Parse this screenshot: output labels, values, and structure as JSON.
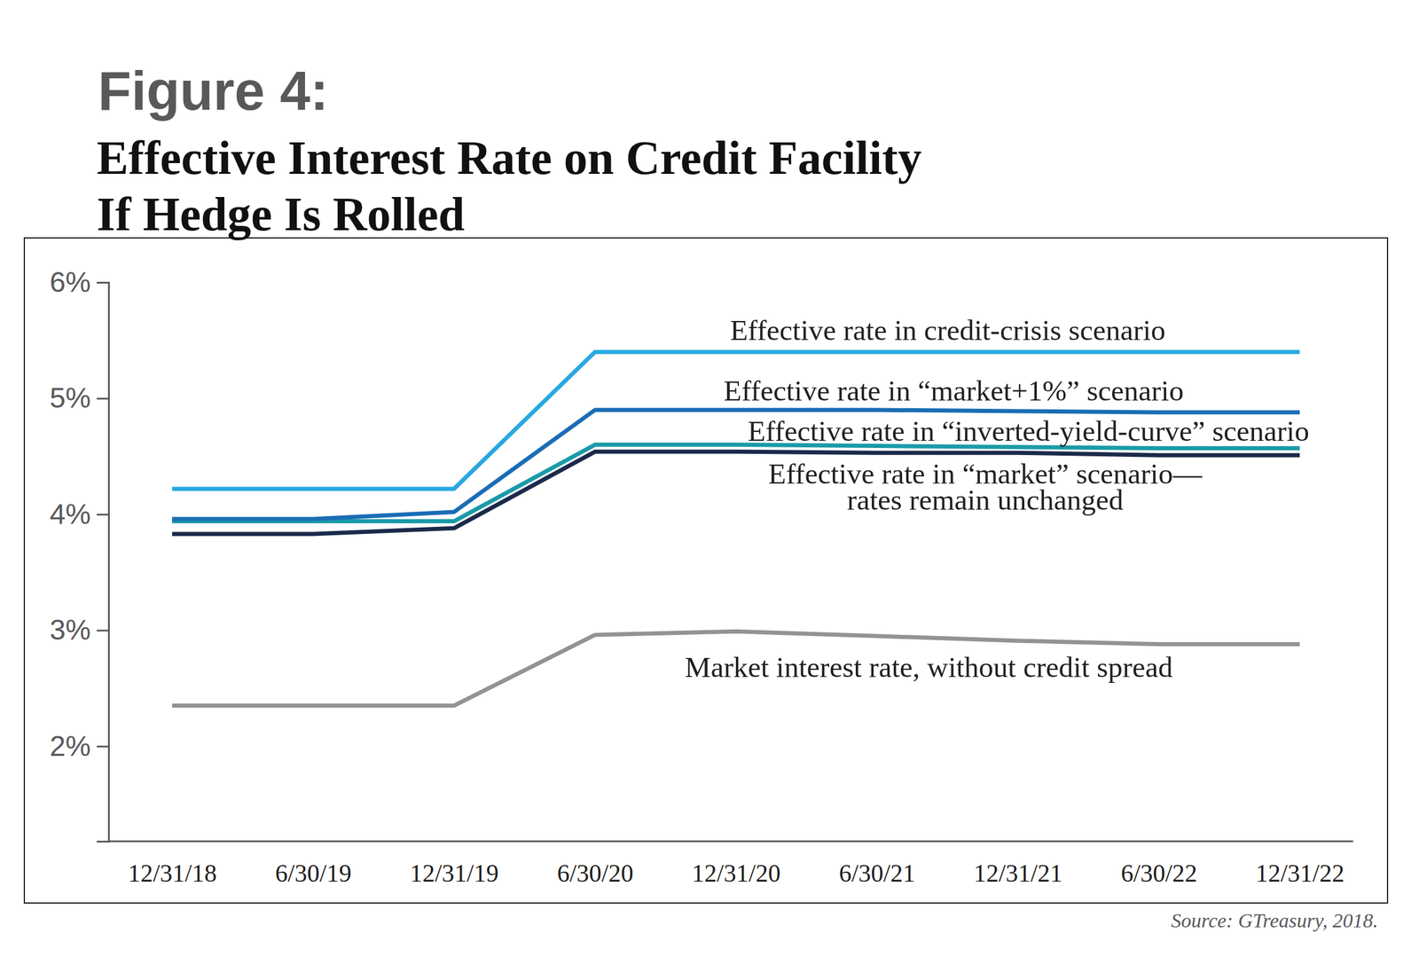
{
  "chart_data": {
    "type": "line",
    "title": "Figure 4:",
    "subtitle": "Effective Interest Rate on Credit Facility\nIf Hedge Is Rolled",
    "source": "Source: GTreasury, 2018.",
    "categories": [
      "12/31/18",
      "6/30/19",
      "12/31/19",
      "6/30/20",
      "12/31/20",
      "6/30/21",
      "12/31/21",
      "6/30/22",
      "12/31/22"
    ],
    "ylim": [
      1.18,
      6
    ],
    "yticks": [
      {
        "value": 2,
        "label": "2%"
      },
      {
        "value": 3,
        "label": "3%"
      },
      {
        "value": 4,
        "label": "4%"
      },
      {
        "value": 5,
        "label": "5%"
      },
      {
        "value": 6,
        "label": "6%"
      }
    ],
    "grid": false,
    "series": [
      {
        "name": "Effective rate in credit-crisis scenario",
        "color": "#29a8e0",
        "values": [
          4.22,
          4.22,
          4.22,
          5.4,
          5.4,
          5.4,
          5.4,
          5.4,
          5.4
        ]
      },
      {
        "name": "Effective rate in “market+1%” scenario",
        "color": "#1b6db5",
        "values": [
          3.96,
          3.96,
          4.02,
          4.9,
          4.9,
          4.9,
          4.89,
          4.88,
          4.88
        ]
      },
      {
        "name": "Effective rate in “inverted-yield-curve” scenario",
        "color": "#1a9ba8",
        "values": [
          3.94,
          3.94,
          3.94,
          4.6,
          4.6,
          4.59,
          4.58,
          4.57,
          4.57
        ]
      },
      {
        "name": "Effective rate in “market” scenario—\nrates remain unchanged",
        "color": "#1b2a4a",
        "values": [
          3.83,
          3.83,
          3.88,
          4.54,
          4.54,
          4.53,
          4.53,
          4.51,
          4.51
        ]
      },
      {
        "name": "Market interest rate, without credit spread",
        "color": "#939393",
        "values": [
          2.35,
          2.35,
          2.35,
          2.96,
          2.99,
          2.95,
          2.91,
          2.88,
          2.88
        ]
      }
    ]
  }
}
